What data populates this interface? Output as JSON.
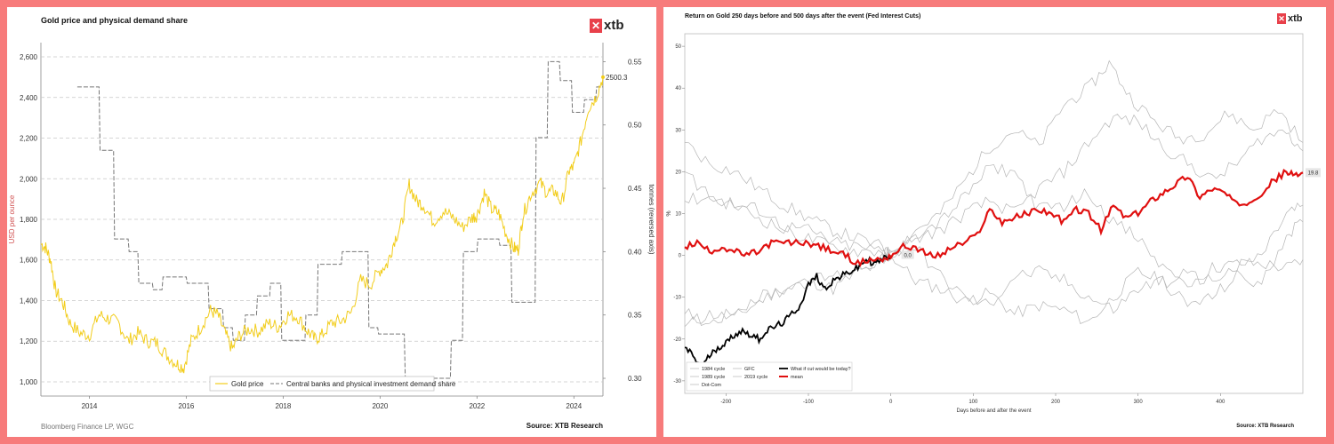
{
  "left": {
    "title": "Gold price and physical demand share",
    "logo": "xtb",
    "source_left": "Bloomberg Finance LP, WGC",
    "source_right": "Source: XTB Research",
    "chart_data": {
      "type": "line",
      "ylabel": "USD per ounce",
      "y2label": "tonnes (reversed axis)",
      "xlim": [
        2013.0,
        2024.6
      ],
      "ylim": [
        930,
        2670
      ],
      "y2lim": [
        0.286,
        0.565
      ],
      "y2_reversed": false,
      "x_ticks": [
        "2014",
        "2016",
        "2018",
        "2020",
        "2022",
        "2024"
      ],
      "x_tick_values": [
        2014,
        2016,
        2018,
        2020,
        2022,
        2024
      ],
      "y_ticks": [
        "1,000",
        "1,200",
        "1,400",
        "1,600",
        "1,800",
        "2,000",
        "2,200",
        "2,400",
        "2,600"
      ],
      "y_tick_values": [
        1000,
        1200,
        1400,
        1600,
        1800,
        2000,
        2200,
        2400,
        2600
      ],
      "y2_ticks": [
        "0.30",
        "0.35",
        "0.40",
        "0.45",
        "0.50",
        "0.55"
      ],
      "y2_tick_values": [
        0.3,
        0.35,
        0.4,
        0.45,
        0.5,
        0.55
      ],
      "legend_position": "bottom-center",
      "last_value_label": "2500.3",
      "series": [
        {
          "name": "Gold price",
          "color": "#f2cd1c",
          "axis": "left",
          "x": [
            2013.0,
            2013.1,
            2013.2,
            2013.3,
            2013.45,
            2013.6,
            2013.8,
            2014.0,
            2014.2,
            2014.4,
            2014.6,
            2014.8,
            2015.0,
            2015.2,
            2015.4,
            2015.6,
            2015.8,
            2015.95,
            2016.1,
            2016.3,
            2016.5,
            2016.65,
            2016.8,
            2016.95,
            2017.1,
            2017.3,
            2017.5,
            2017.7,
            2017.9,
            2018.1,
            2018.3,
            2018.5,
            2018.65,
            2018.8,
            2019.0,
            2019.2,
            2019.4,
            2019.6,
            2019.8,
            2020.0,
            2020.15,
            2020.3,
            2020.45,
            2020.6,
            2020.75,
            2020.9,
            2021.1,
            2021.3,
            2021.5,
            2021.7,
            2021.9,
            2022.0,
            2022.15,
            2022.3,
            2022.45,
            2022.6,
            2022.75,
            2022.85,
            2022.95,
            2023.1,
            2023.3,
            2023.45,
            2023.6,
            2023.75,
            2023.9,
            2024.0,
            2024.15,
            2024.3,
            2024.45,
            2024.6
          ],
          "values": [
            1680,
            1660,
            1600,
            1450,
            1390,
            1290,
            1240,
            1230,
            1330,
            1310,
            1290,
            1200,
            1240,
            1200,
            1190,
            1130,
            1090,
            1070,
            1200,
            1270,
            1350,
            1330,
            1240,
            1160,
            1230,
            1260,
            1250,
            1290,
            1270,
            1330,
            1320,
            1250,
            1210,
            1230,
            1290,
            1300,
            1340,
            1500,
            1480,
            1550,
            1580,
            1700,
            1780,
            1970,
            1890,
            1870,
            1790,
            1840,
            1810,
            1760,
            1810,
            1820,
            1930,
            1850,
            1830,
            1730,
            1660,
            1650,
            1820,
            1920,
            1980,
            1930,
            1940,
            1880,
            2040,
            2060,
            2190,
            2350,
            2400,
            2500
          ]
        },
        {
          "name": "Central banks and physical investment demand share",
          "color": "#777777",
          "axis": "right",
          "x": [
            2013.75,
            2014.2,
            2014.22,
            2014.5,
            2014.52,
            2014.8,
            2014.82,
            2015.0,
            2015.02,
            2015.3,
            2015.32,
            2015.5,
            2015.52,
            2015.8,
            2015.82,
            2016.0,
            2016.02,
            2016.45,
            2016.47,
            2016.75,
            2016.77,
            2016.95,
            2016.97,
            2017.2,
            2017.22,
            2017.45,
            2017.47,
            2017.72,
            2017.74,
            2017.95,
            2017.97,
            2018.45,
            2018.47,
            2018.7,
            2018.72,
            2018.95,
            2018.97,
            2019.2,
            2019.22,
            2019.75,
            2019.77,
            2019.95,
            2019.97,
            2020.5,
            2020.52,
            2020.95,
            2020.97,
            2021.45,
            2021.47,
            2021.7,
            2021.72,
            2022.0,
            2022.02,
            2022.45,
            2022.47,
            2022.7,
            2022.72,
            2022.95,
            2022.97,
            2023.2,
            2023.22,
            2023.45,
            2023.47,
            2023.7,
            2023.72,
            2023.95,
            2023.97,
            2024.2,
            2024.22,
            2024.45,
            2024.47,
            2024.6
          ],
          "values": [
            0.53,
            0.53,
            0.48,
            0.48,
            0.41,
            0.41,
            0.4,
            0.4,
            0.375,
            0.375,
            0.37,
            0.37,
            0.38,
            0.38,
            0.38,
            0.38,
            0.375,
            0.375,
            0.355,
            0.355,
            0.34,
            0.34,
            0.33,
            0.33,
            0.35,
            0.35,
            0.365,
            0.365,
            0.375,
            0.375,
            0.33,
            0.33,
            0.35,
            0.35,
            0.39,
            0.39,
            0.39,
            0.39,
            0.4,
            0.4,
            0.34,
            0.34,
            0.335,
            0.335,
            0.3,
            0.3,
            0.3,
            0.3,
            0.33,
            0.33,
            0.4,
            0.4,
            0.41,
            0.41,
            0.405,
            0.405,
            0.36,
            0.36,
            0.36,
            0.36,
            0.49,
            0.49,
            0.55,
            0.55,
            0.535,
            0.535,
            0.51,
            0.51,
            0.52,
            0.52,
            0.53,
            0.53
          ]
        }
      ]
    }
  },
  "right": {
    "title": "Return on Gold 250 days before and 500 days after the event (Fed Interest Cuts)",
    "logo": "xtb",
    "source_right": "Source: XTB Research",
    "chart_data": {
      "type": "line",
      "xlabel": "Days before and after the event",
      "ylabel": "%",
      "xlim": [
        -250,
        500
      ],
      "ylim": [
        -33,
        53
      ],
      "x_ticks": [
        "-200",
        "-100",
        "0",
        "100",
        "200",
        "300",
        "400"
      ],
      "x_tick_values": [
        -200,
        -100,
        0,
        100,
        200,
        300,
        400
      ],
      "y_ticks": [
        "-30",
        "-20",
        "-10",
        "0",
        "10",
        "20",
        "30",
        "40",
        "50"
      ],
      "y_tick_values": [
        -30,
        -20,
        -10,
        0,
        10,
        20,
        30,
        40,
        50
      ],
      "legend_position": "bottom-left",
      "zero_label": "0.0",
      "last_value_label": "19.8",
      "series": [
        {
          "name": "1984 cycle",
          "color": "#b5b5b5",
          "width": 0.7,
          "x": [
            -250,
            -220,
            -190,
            -160,
            -130,
            -100,
            -70,
            -40,
            -10,
            0,
            30,
            60,
            90,
            120,
            150,
            180,
            210,
            240,
            270,
            300,
            330,
            360,
            390,
            420,
            450,
            480,
            500
          ],
          "values": [
            -17,
            -14,
            -15,
            -11,
            -8,
            -6,
            -8,
            -4,
            -2,
            0,
            -6,
            -8,
            -11,
            -9,
            -14,
            -12,
            -13,
            -16,
            -10,
            -4,
            -6,
            -7,
            -3,
            -2,
            -2,
            -3,
            -1
          ]
        },
        {
          "name": "1989 cycle",
          "color": "#b5b5b5",
          "width": 0.7,
          "x": [
            -250,
            -220,
            -190,
            -160,
            -130,
            -100,
            -70,
            -40,
            -10,
            0,
            30,
            60,
            90,
            120,
            150,
            180,
            210,
            240,
            265,
            290,
            320,
            350,
            380,
            410,
            440,
            470,
            500
          ],
          "values": [
            27,
            22,
            20,
            16,
            12,
            9,
            6,
            4,
            2,
            0,
            6,
            10,
            18,
            26,
            30,
            26,
            36,
            40,
            46,
            38,
            32,
            28,
            29,
            34,
            30,
            35,
            27
          ]
        },
        {
          "name": "Dot-Com",
          "color": "#b5b5b5",
          "width": 0.7,
          "x": [
            -250,
            -220,
            -190,
            -160,
            -130,
            -100,
            -70,
            -40,
            -10,
            0,
            30,
            60,
            90,
            120,
            150,
            180,
            210,
            240,
            270,
            300,
            330,
            360,
            390,
            420,
            450,
            480,
            500
          ],
          "values": [
            20,
            14,
            12,
            9,
            6,
            4,
            2,
            1,
            1,
            0,
            4,
            6,
            10,
            13,
            10,
            16,
            20,
            27,
            33,
            32,
            26,
            22,
            18,
            22,
            28,
            30,
            25
          ]
        },
        {
          "name": "GFC",
          "color": "#b5b5b5",
          "width": 0.7,
          "x": [
            -250,
            -220,
            -190,
            -160,
            -130,
            -100,
            -70,
            -40,
            -10,
            0,
            30,
            60,
            90,
            120,
            150,
            180,
            210,
            240,
            270,
            300,
            330,
            360,
            390,
            420,
            450,
            480,
            500
          ],
          "values": [
            13,
            14,
            12,
            11,
            7,
            6,
            3,
            2,
            1,
            0,
            2,
            -5,
            -10,
            -12,
            -5,
            -4,
            -6,
            -10,
            -13,
            -8,
            -6,
            -12,
            -10,
            -5,
            -7,
            5,
            8
          ]
        },
        {
          "name": "2019 cycle",
          "color": "#b5b5b5",
          "width": 0.7,
          "x": [
            -250,
            -220,
            -190,
            -160,
            -130,
            -100,
            -70,
            -40,
            -10,
            0,
            30,
            60,
            90,
            120,
            150,
            180,
            210,
            240,
            270,
            300,
            330,
            360,
            390,
            420,
            450,
            480,
            500
          ],
          "values": [
            -14,
            -16,
            -13,
            -10,
            -8,
            -6,
            -5,
            -3,
            -1,
            0,
            5,
            8,
            14,
            21,
            20,
            11,
            12,
            15,
            8,
            4,
            -3,
            -5,
            -6,
            -3,
            0,
            10,
            12
          ]
        },
        {
          "name": "What if cut would be today?",
          "color": "#000000",
          "width": 1.8,
          "x": [
            -250,
            -240,
            -230,
            -220,
            -210,
            -200,
            -190,
            -180,
            -170,
            -160,
            -150,
            -140,
            -130,
            -120,
            -110,
            -100,
            -90,
            -80,
            -70,
            -60,
            -50,
            -40,
            -30,
            -20,
            -10,
            0
          ],
          "values": [
            -22,
            -24,
            -27,
            -24,
            -22,
            -21,
            -19,
            -18,
            -19,
            -20,
            -18,
            -17,
            -16,
            -14,
            -12,
            -7,
            -5,
            -8,
            -6,
            -5,
            -4,
            -3,
            -1,
            -2,
            -1,
            0
          ]
        },
        {
          "name": "mean",
          "color": "#e01010",
          "width": 2.2,
          "x": [
            -250,
            -235,
            -220,
            -205,
            -190,
            -175,
            -160,
            -145,
            -130,
            -115,
            -100,
            -85,
            -70,
            -55,
            -40,
            -25,
            -10,
            0,
            15,
            30,
            45,
            60,
            75,
            90,
            105,
            120,
            135,
            150,
            165,
            180,
            195,
            210,
            225,
            240,
            255,
            270,
            285,
            300,
            315,
            330,
            345,
            360,
            375,
            390,
            405,
            420,
            435,
            450,
            465,
            480,
            490,
            500
          ],
          "values": [
            2,
            3,
            1,
            2,
            1,
            0,
            1,
            3,
            3,
            3,
            3,
            2,
            1,
            0,
            -2,
            -1,
            -1,
            0,
            2,
            2,
            0,
            0,
            2,
            3,
            5,
            11,
            8,
            9,
            10,
            11,
            10,
            8,
            11,
            10,
            6,
            12,
            9,
            10,
            13,
            15,
            17,
            19,
            14,
            16,
            15,
            12,
            13,
            15,
            18,
            20,
            19,
            19.8
          ]
        }
      ]
    }
  }
}
